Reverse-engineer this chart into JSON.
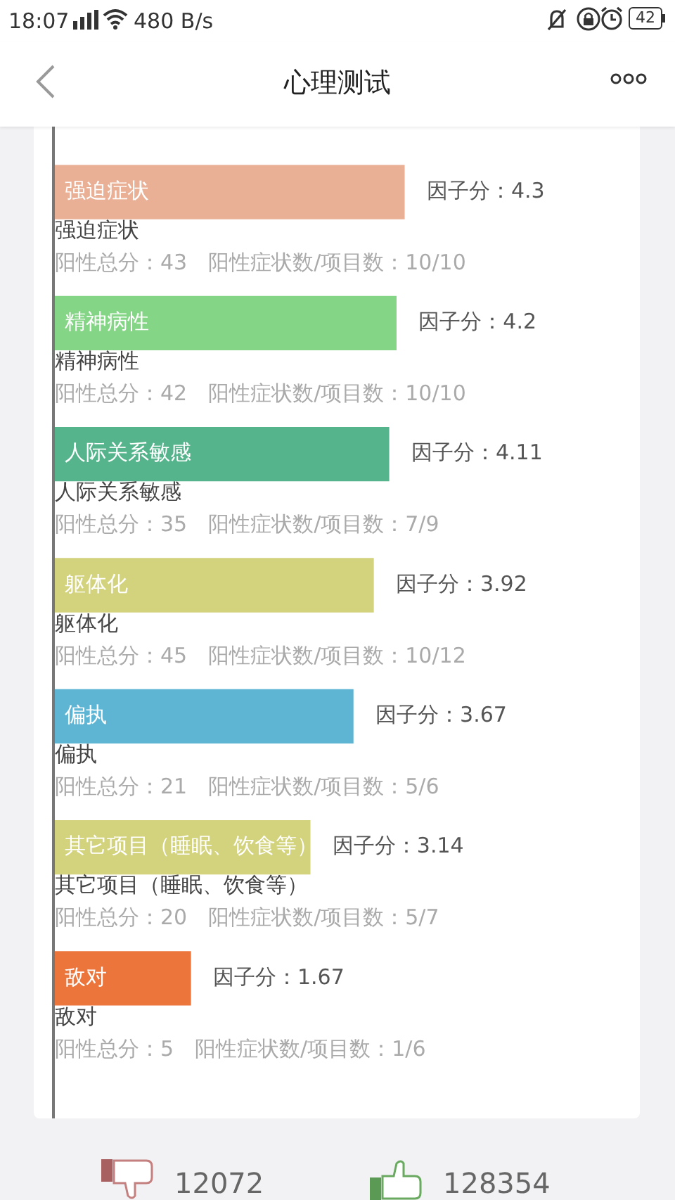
{
  "chart_data": {
    "type": "bar",
    "orientation": "horizontal",
    "title": "心理测试",
    "categories": [
      "强迫症状",
      "精神病性",
      "人际关系敏感",
      "躯体化",
      "偏执",
      "其它项目（睡眠、饮食等）",
      "敌对"
    ],
    "values": [
      4.3,
      4.2,
      4.11,
      3.92,
      3.67,
      3.14,
      1.67
    ],
    "colors": [
      "#e9b096",
      "#84d585",
      "#56b48c",
      "#d2d37c",
      "#5eb5d3",
      "#d2d37c",
      "#ec753c"
    ],
    "value_labels": [
      "因子分：4.3",
      "因子分：4.2",
      "因子分：4.11",
      "因子分：3.92",
      "因子分：3.67",
      "因子分：3.14",
      "因子分：1.67"
    ],
    "xlim": [
      0,
      7.2
    ],
    "legend": false,
    "annotations": [
      "18:07",
      "480 B/s",
      "42",
      "12072",
      "128354",
      "阳性总分：43　阳性症状数/项目数：10/10",
      "阳性总分：42　阳性症状数/项目数：10/10",
      "阳性总分：35　阳性症状数/项目数：7/9",
      "阳性总分：45　阳性症状数/项目数：10/12",
      "阳性总分：21　阳性症状数/项目数：5/6",
      "阳性总分：20　阳性症状数/项目数：5/7",
      "阳性总分：5　阳性症状数/项目数：1/6"
    ]
  }
}
